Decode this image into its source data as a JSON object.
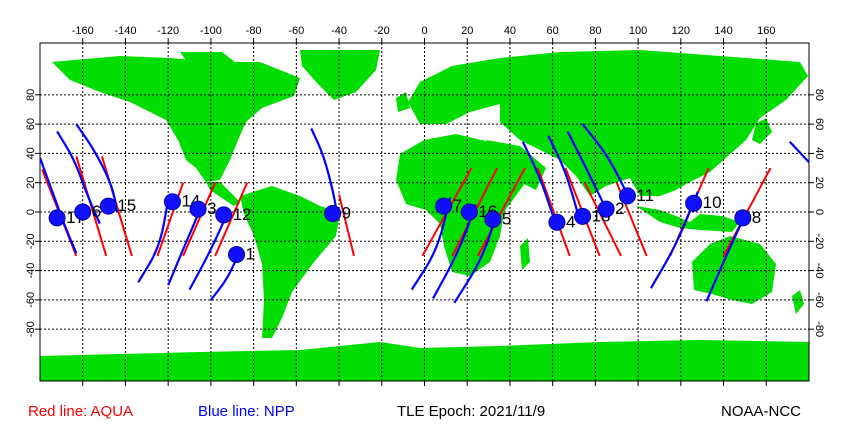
{
  "colors": {
    "ocean": "#ffffff",
    "land": "#00dd00",
    "aqua_track": "#ff0000",
    "npp_track": "#0000ff",
    "marker": "#1010ff"
  },
  "axes": {
    "lon_ticks": [
      "-160",
      "-140",
      "-120",
      "-100",
      "-80",
      "-60",
      "-40",
      "-20",
      "0",
      "20",
      "40",
      "60",
      "80",
      "100",
      "120",
      "140",
      "160"
    ],
    "lat_ticks": [
      "80",
      "60",
      "40",
      "20",
      "0",
      "-20",
      "-40",
      "-60",
      "-80"
    ]
  },
  "satellites": [
    {
      "label": "17",
      "lon": -172,
      "lat": -4
    },
    {
      "label": "6",
      "lon": -160,
      "lat": 0
    },
    {
      "label": "15",
      "lon": -148,
      "lat": 4
    },
    {
      "label": "14",
      "lon": -118,
      "lat": 7
    },
    {
      "label": "3",
      "lon": -106,
      "lat": 2
    },
    {
      "label": "12",
      "lon": -94,
      "lat": -2
    },
    {
      "label": "1",
      "lon": -88,
      "lat": -29
    },
    {
      "label": "9",
      "lon": -43,
      "lat": -1
    },
    {
      "label": "7",
      "lon": 9,
      "lat": 4
    },
    {
      "label": "16",
      "lon": 21,
      "lat": 0
    },
    {
      "label": "5",
      "lon": 32,
      "lat": -5
    },
    {
      "label": "4",
      "lon": 62,
      "lat": -7
    },
    {
      "label": "18",
      "lon": 74,
      "lat": -3
    },
    {
      "label": "2",
      "lon": 85,
      "lat": 2
    },
    {
      "label": "11",
      "lon": 95,
      "lat": 11
    },
    {
      "label": "10",
      "lon": 126,
      "lat": 6
    },
    {
      "label": "8",
      "lon": 149,
      "lat": -4
    }
  ],
  "aqua_tracks": [
    {
      "lon": -179,
      "lat": 29,
      "lon2": -163,
      "lat2": -30
    },
    {
      "lon": -163,
      "lat": 38,
      "lon2": -149,
      "lat2": -30
    },
    {
      "lon": -151,
      "lat": 38,
      "lon2": -137,
      "lat2": -30
    },
    {
      "lon": -113,
      "lat": 20,
      "lon2": -125,
      "lat2": -30
    },
    {
      "lon": -98,
      "lat": 20,
      "lon2": -113,
      "lat2": -30
    },
    {
      "lon": -83,
      "lat": 20,
      "lon2": -98,
      "lat2": -30
    },
    {
      "lon": -40,
      "lat": 12,
      "lon2": -33,
      "lat2": -30
    },
    {
      "lon": 22,
      "lat": 30,
      "lon2": -1,
      "lat2": -30
    },
    {
      "lon": 34,
      "lat": 30,
      "lon2": 13,
      "lat2": -30
    },
    {
      "lon": 47,
      "lat": 30,
      "lon2": 25,
      "lat2": -30
    },
    {
      "lon": 53,
      "lat": 30,
      "lon2": 68,
      "lat2": -30
    },
    {
      "lon": 66,
      "lat": 30,
      "lon2": 82,
      "lat2": -30
    },
    {
      "lon": 75,
      "lat": 20,
      "lon2": 92,
      "lat2": -30
    },
    {
      "lon": 90,
      "lat": 20,
      "lon2": 104,
      "lat2": -30
    },
    {
      "lon": 133,
      "lat": 30,
      "lon2": 115,
      "lat2": -30
    },
    {
      "lon": 162,
      "lat": 30,
      "lon2": 140,
      "lat2": -30
    }
  ],
  "npp_tracks": [
    [
      [
        -180,
        37
      ],
      [
        -174,
        13
      ],
      [
        -168,
        -11
      ],
      [
        -163,
        -28
      ]
    ],
    [
      [
        -172,
        55
      ],
      [
        -164,
        36
      ],
      [
        -158,
        12
      ],
      [
        -152,
        -8
      ]
    ],
    [
      [
        -163,
        60
      ],
      [
        -154,
        41
      ],
      [
        -146,
        17
      ],
      [
        -144,
        0
      ]
    ],
    [
      [
        -120,
        8
      ],
      [
        -124,
        -24
      ],
      [
        -134,
        -48
      ]
    ],
    [
      [
        -104,
        5
      ],
      [
        -112,
        -22
      ],
      [
        -120,
        -50
      ]
    ],
    [
      [
        -92,
        0
      ],
      [
        -100,
        -26
      ],
      [
        -110,
        -53
      ]
    ],
    [
      [
        -86,
        -25
      ],
      [
        -92,
        -45
      ],
      [
        -100,
        -60
      ]
    ],
    [
      [
        -53,
        57
      ],
      [
        -47,
        38
      ],
      [
        -42,
        9
      ],
      [
        -41,
        -3
      ]
    ],
    [
      [
        12,
        10
      ],
      [
        6,
        -26
      ],
      [
        -6,
        -53
      ]
    ],
    [
      [
        24,
        5
      ],
      [
        16,
        -27
      ],
      [
        4,
        -59
      ]
    ],
    [
      [
        34,
        0
      ],
      [
        27,
        -32
      ],
      [
        14,
        -62
      ]
    ],
    [
      [
        46,
        48
      ],
      [
        54,
        24
      ],
      [
        60,
        -2
      ]
    ],
    [
      [
        58,
        52
      ],
      [
        66,
        28
      ],
      [
        72,
        -2
      ]
    ],
    [
      [
        67,
        55
      ],
      [
        75,
        32
      ],
      [
        84,
        5
      ]
    ],
    [
      [
        74,
        60
      ],
      [
        86,
        38
      ],
      [
        95,
        12
      ]
    ],
    [
      [
        128,
        14
      ],
      [
        118,
        -22
      ],
      [
        106,
        -52
      ]
    ],
    [
      [
        150,
        -2
      ],
      [
        140,
        -34
      ],
      [
        132,
        -61
      ]
    ],
    [
      [
        171,
        48
      ],
      [
        180,
        34
      ]
    ]
  ],
  "footer": {
    "aqua_legend": "Red line: AQUA",
    "npp_legend": "Blue line: NPP",
    "epoch": "TLE Epoch: 2021/11/9",
    "source": "NOAA-NCC"
  }
}
